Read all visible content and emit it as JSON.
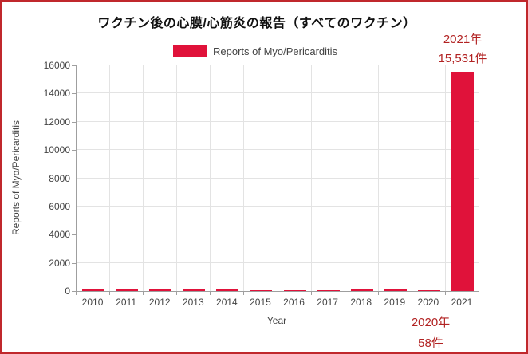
{
  "title": "ワクチン後の心膜/心筋炎の報告（すべてのワクチン）",
  "legend": {
    "label": "Reports of Myo/Pericarditis"
  },
  "annotations": {
    "top_right": {
      "line1": "2021年",
      "line2": "15,531件"
    },
    "bottom_right": {
      "line1": "2020年",
      "line2": "58件"
    }
  },
  "colors": {
    "bar": "#e0123a",
    "annotation": "#b22222",
    "frame_border": "#c0282c",
    "gridline": "#e3e3e3",
    "axis_line": "#9f9f9f",
    "axis_text": "#444444",
    "title_text": "#111111"
  },
  "chart_data": {
    "type": "bar",
    "title": "ワクチン後の心膜/心筋炎の報告（すべてのワクチン）",
    "series_name": "Reports of Myo/Pericarditis",
    "categories": [
      "2010",
      "2011",
      "2012",
      "2013",
      "2014",
      "2015",
      "2016",
      "2017",
      "2018",
      "2019",
      "2020",
      "2021"
    ],
    "values": [
      110,
      110,
      170,
      140,
      120,
      75,
      55,
      85,
      140,
      90,
      58,
      15531
    ],
    "labeled_values": {
      "2020": 58,
      "2021": 15531
    },
    "xlabel": "Year",
    "ylabel": "Reports of Myo/Pericarditis",
    "ylim": [
      0,
      16000
    ],
    "yticks": [
      0,
      2000,
      4000,
      6000,
      8000,
      10000,
      12000,
      14000,
      16000
    ],
    "grid": true,
    "legend_position": "top-center"
  }
}
